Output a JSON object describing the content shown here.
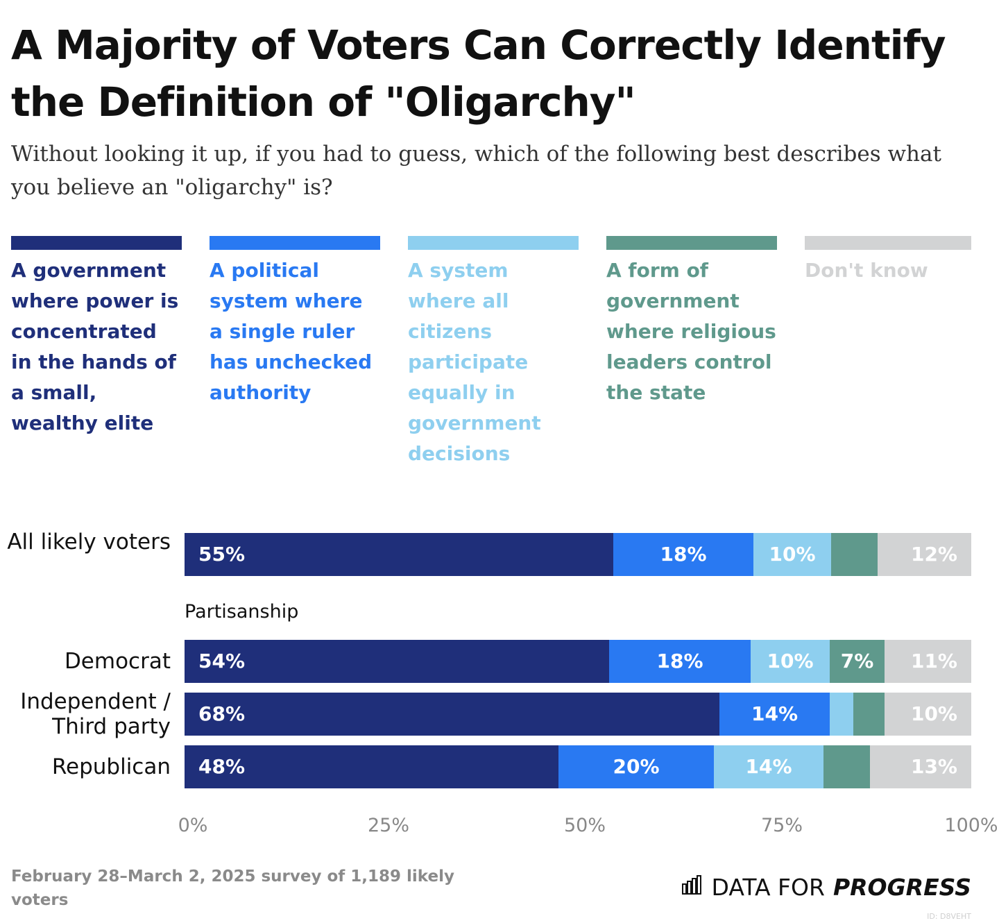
{
  "title": "A Majority of Voters Can Correctly Identify the Definition of \"Oligarchy\"",
  "subtitle": "Without looking it up, if you had to guess, which of the following best describes what you believe an \"oligarchy\" is?",
  "legend": [
    {
      "label": "A government where power is concentrated in the hands of a small, wealthy elite",
      "color": "#1f2f7a"
    },
    {
      "label": "A political system where a single ruler has unchecked authority",
      "color": "#2979f2"
    },
    {
      "label": "A system where all citizens participate equally in government decisions",
      "color": "#8ecfef"
    },
    {
      "label": "A form of government where religious leaders control the state",
      "color": "#5f998c"
    },
    {
      "label": "Don't know",
      "color": "#d2d3d4"
    }
  ],
  "group_label": "Partisanship",
  "source": "February 28–March 2, 2025 survey of 1,189 likely voters",
  "brand": {
    "data_for": "DATA FOR",
    "progress": "PROGRESS",
    "icon": "bar-chart-logo-icon"
  },
  "chart_id": "ID: D8VEHT",
  "chart_data": {
    "type": "bar",
    "orientation": "horizontal",
    "stacked": true,
    "xlim": [
      0,
      100
    ],
    "x_ticks": [
      "0%",
      "25%",
      "50%",
      "75%",
      "100%"
    ],
    "grid": false,
    "legend_placement": "top",
    "categories": [
      "All likely voters",
      "Democrat",
      "Independent / Third party",
      "Republican"
    ],
    "series": [
      {
        "name": "A government where power is concentrated in the hands of a small, wealthy elite",
        "color": "#1f2f7a",
        "values": [
          55,
          54,
          68,
          48
        ],
        "labels": [
          "55%",
          "54%",
          "68%",
          "48%"
        ]
      },
      {
        "name": "A political system where a single ruler has unchecked authority",
        "color": "#2979f2",
        "values": [
          18,
          18,
          14,
          20
        ],
        "labels": [
          "18%",
          "18%",
          "14%",
          "20%"
        ]
      },
      {
        "name": "A system where all citizens participate equally in government decisions",
        "color": "#8ecfef",
        "values": [
          10,
          10,
          3,
          14
        ],
        "labels": [
          "10%",
          "10%",
          "",
          "14%"
        ]
      },
      {
        "name": "A form of government where religious leaders control the state",
        "color": "#5f998c",
        "values": [
          6,
          7,
          4,
          6
        ],
        "labels": [
          "",
          "7%",
          "",
          ""
        ]
      },
      {
        "name": "Don't know",
        "color": "#d2d3d4",
        "values": [
          12,
          11,
          10,
          13
        ],
        "labels": [
          "12%",
          "11%",
          "10%",
          "13%"
        ]
      }
    ]
  }
}
